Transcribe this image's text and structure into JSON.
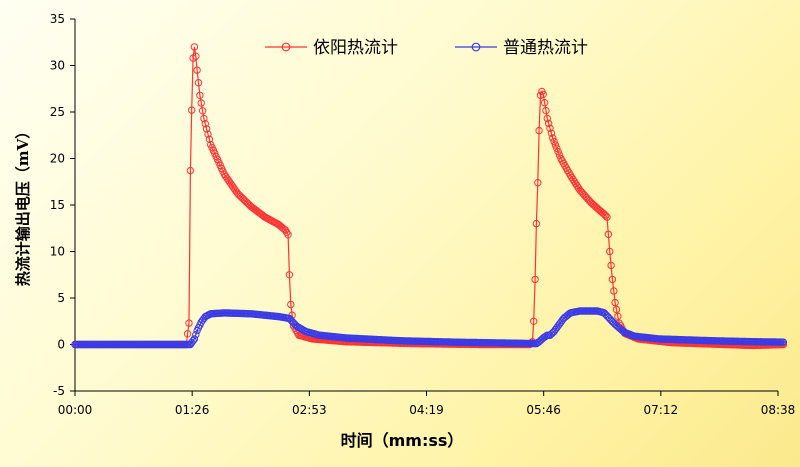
{
  "chart_data": {
    "type": "line",
    "title": "",
    "xlabel": "时间（mm:ss）",
    "ylabel": "热流计输出电压（mV）",
    "ylim": [
      -5,
      35
    ],
    "yticks": [
      -5,
      0,
      5,
      10,
      15,
      20,
      25,
      30,
      35
    ],
    "xlim_seconds": [
      0,
      518
    ],
    "xtick_labels": [
      "00:00",
      "01:26",
      "02:53",
      "04:19",
      "05:46",
      "07:12",
      "08:38"
    ],
    "grid": false,
    "legend_position": "top",
    "series": [
      {
        "name": "依阳热流计",
        "color": "#ff3333",
        "marker": "open-circle",
        "points": [
          [
            0,
            0
          ],
          [
            82,
            0
          ],
          [
            84,
            2.3
          ],
          [
            85,
            18.7
          ],
          [
            86,
            25.2
          ],
          [
            87,
            30.8
          ],
          [
            88,
            32.0
          ],
          [
            89,
            31.0
          ],
          [
            90,
            29.5
          ],
          [
            92,
            26.8
          ],
          [
            95,
            24.3
          ],
          [
            100,
            21.5
          ],
          [
            110,
            18.3
          ],
          [
            120,
            16.2
          ],
          [
            130,
            14.8
          ],
          [
            140,
            13.7
          ],
          [
            150,
            12.9
          ],
          [
            155,
            12.3
          ],
          [
            157,
            11.8
          ],
          [
            158,
            7.5
          ],
          [
            159,
            4.3
          ],
          [
            161,
            2.0
          ],
          [
            165,
            1.0
          ],
          [
            175,
            0.6
          ],
          [
            200,
            0.3
          ],
          [
            250,
            0.1
          ],
          [
            300,
            0.0
          ],
          [
            335,
            0
          ],
          [
            337,
            0.3
          ],
          [
            338,
            2.5
          ],
          [
            339,
            7.0
          ],
          [
            340,
            13.0
          ],
          [
            341,
            17.4
          ],
          [
            342,
            23.0
          ],
          [
            343,
            26.8
          ],
          [
            344,
            27.2
          ],
          [
            345,
            26.9
          ],
          [
            346,
            26.0
          ],
          [
            348,
            24.3
          ],
          [
            352,
            22.2
          ],
          [
            358,
            20.0
          ],
          [
            365,
            18.2
          ],
          [
            372,
            16.6
          ],
          [
            380,
            15.3
          ],
          [
            386,
            14.5
          ],
          [
            390,
            14.0
          ],
          [
            392,
            13.7
          ],
          [
            394,
            10.0
          ],
          [
            396,
            7.0
          ],
          [
            398,
            4.5
          ],
          [
            401,
            2.3
          ],
          [
            405,
            1.2
          ],
          [
            415,
            0.6
          ],
          [
            440,
            0.2
          ],
          [
            480,
            0.0
          ],
          [
            500,
            -0.1
          ],
          [
            522,
            0.0
          ]
        ]
      },
      {
        "name": "普通热流计",
        "color": "#3b3be6",
        "marker": "open-circle",
        "points": [
          [
            0,
            0
          ],
          [
            85,
            0
          ],
          [
            88,
            0.6
          ],
          [
            90,
            1.5
          ],
          [
            93,
            2.4
          ],
          [
            96,
            3.0
          ],
          [
            100,
            3.3
          ],
          [
            110,
            3.4
          ],
          [
            130,
            3.3
          ],
          [
            150,
            3.0
          ],
          [
            158,
            2.8
          ],
          [
            163,
            2.0
          ],
          [
            170,
            1.4
          ],
          [
            180,
            1.0
          ],
          [
            200,
            0.7
          ],
          [
            240,
            0.4
          ],
          [
            280,
            0.25
          ],
          [
            320,
            0.15
          ],
          [
            340,
            0.1
          ],
          [
            342,
            0.3
          ],
          [
            345,
            0.7
          ],
          [
            348,
            1.0
          ],
          [
            350,
            1.0
          ],
          [
            353,
            1.4
          ],
          [
            356,
            2.0
          ],
          [
            360,
            2.8
          ],
          [
            365,
            3.4
          ],
          [
            372,
            3.6
          ],
          [
            385,
            3.6
          ],
          [
            390,
            3.4
          ],
          [
            395,
            2.6
          ],
          [
            400,
            1.9
          ],
          [
            405,
            1.3
          ],
          [
            412,
            0.9
          ],
          [
            430,
            0.6
          ],
          [
            470,
            0.4
          ],
          [
            500,
            0.3
          ],
          [
            522,
            0.25
          ]
        ]
      }
    ]
  }
}
